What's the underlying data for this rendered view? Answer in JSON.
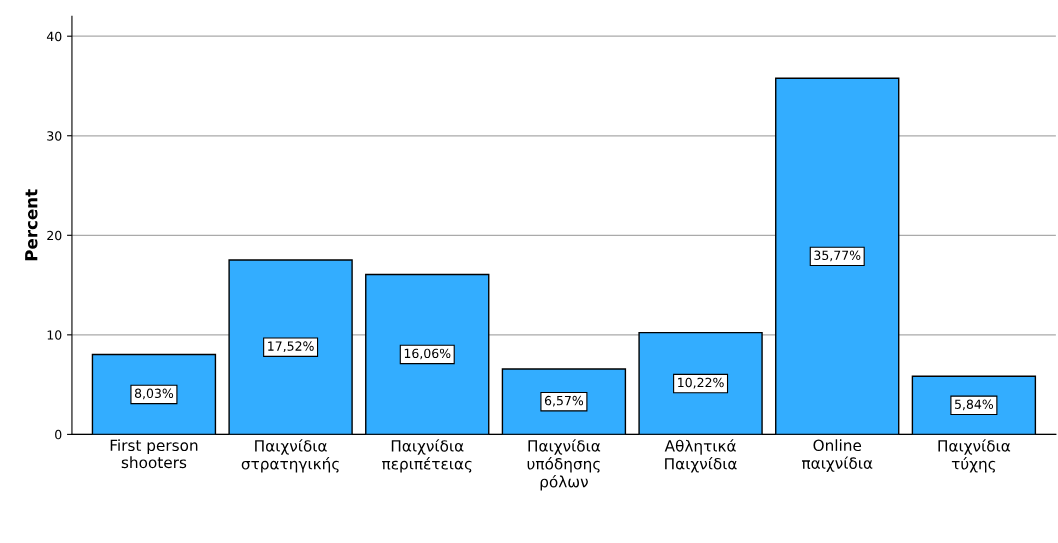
{
  "chart_data": {
    "type": "bar",
    "ylabel": "Percent",
    "categories": [
      "First person\nshooters",
      "Παιχνίδια\nστρατηγικής",
      "Παιχνίδια\nπεριπέτειας",
      "Παιχνίδια\nυπόδησης\nρόλων",
      "Αθλητικά\nΠαιχνίδια",
      "Online\nπαιχνίδια",
      "Παιχνίδια\nτύχης"
    ],
    "values": [
      8.03,
      17.52,
      16.06,
      6.57,
      10.22,
      35.77,
      5.84
    ],
    "value_labels": [
      "8,03%",
      "17,52%",
      "16,06%",
      "6,57%",
      "10,22%",
      "35,77%",
      "5,84%"
    ],
    "color": "#33adff",
    "ylim": [
      0,
      42
    ],
    "yticks": [
      0,
      10,
      20,
      30,
      40
    ],
    "grid": "y"
  }
}
